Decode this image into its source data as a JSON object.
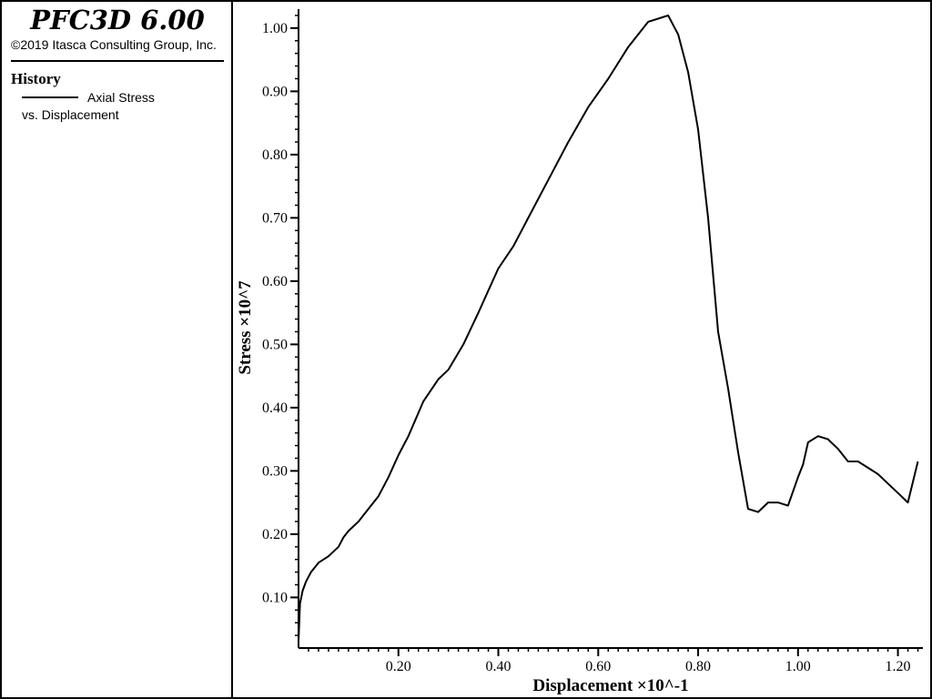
{
  "app": {
    "title": "PFC3D 6.00",
    "copyright": "©2019 Itasca Consulting Group, Inc."
  },
  "legend": {
    "heading": "History",
    "series_label": "Axial Stress",
    "vs_label": "vs. Displacement"
  },
  "chart_data": {
    "type": "line",
    "xlabel": "Displacement ×10^-1",
    "ylabel": "Stress ×10^7",
    "xlim": [
      0.0,
      1.25
    ],
    "ylim": [
      0.02,
      1.03
    ],
    "x_ticks": [
      0.2,
      0.4,
      0.6,
      0.8,
      1.0,
      1.2
    ],
    "x_tick_labels": [
      "0.20",
      "0.40",
      "0.60",
      "0.80",
      "1.00",
      "1.20"
    ],
    "y_ticks": [
      0.1,
      0.2,
      0.3,
      0.4,
      0.5,
      0.6,
      0.7,
      0.8,
      0.9,
      1.0
    ],
    "y_tick_labels": [
      "0.10",
      "0.20",
      "0.30",
      "0.40",
      "0.50",
      "0.60",
      "0.70",
      "0.80",
      "0.90",
      "1.00"
    ],
    "grid": false,
    "series": [
      {
        "name": "Axial Stress",
        "color": "#000000",
        "x": [
          0.0,
          0.003,
          0.008,
          0.015,
          0.025,
          0.04,
          0.06,
          0.08,
          0.09,
          0.1,
          0.12,
          0.14,
          0.16,
          0.18,
          0.2,
          0.22,
          0.25,
          0.28,
          0.3,
          0.33,
          0.36,
          0.38,
          0.4,
          0.43,
          0.46,
          0.5,
          0.54,
          0.58,
          0.62,
          0.66,
          0.7,
          0.74,
          0.76,
          0.78,
          0.8,
          0.82,
          0.84,
          0.86,
          0.88,
          0.9,
          0.92,
          0.94,
          0.96,
          0.98,
          1.0,
          1.01,
          1.02,
          1.04,
          1.06,
          1.08,
          1.1,
          1.12,
          1.14,
          1.16,
          1.18,
          1.2,
          1.22,
          1.24
        ],
        "y": [
          0.03,
          0.09,
          0.11,
          0.125,
          0.14,
          0.155,
          0.165,
          0.18,
          0.195,
          0.205,
          0.22,
          0.24,
          0.26,
          0.29,
          0.325,
          0.355,
          0.41,
          0.445,
          0.46,
          0.5,
          0.55,
          0.585,
          0.62,
          0.655,
          0.7,
          0.76,
          0.82,
          0.875,
          0.92,
          0.97,
          1.01,
          1.02,
          0.99,
          0.93,
          0.84,
          0.7,
          0.52,
          0.43,
          0.33,
          0.24,
          0.235,
          0.25,
          0.25,
          0.245,
          0.29,
          0.31,
          0.345,
          0.355,
          0.35,
          0.335,
          0.315,
          0.315,
          0.305,
          0.295,
          0.28,
          0.265,
          0.25,
          0.315
        ]
      }
    ]
  }
}
